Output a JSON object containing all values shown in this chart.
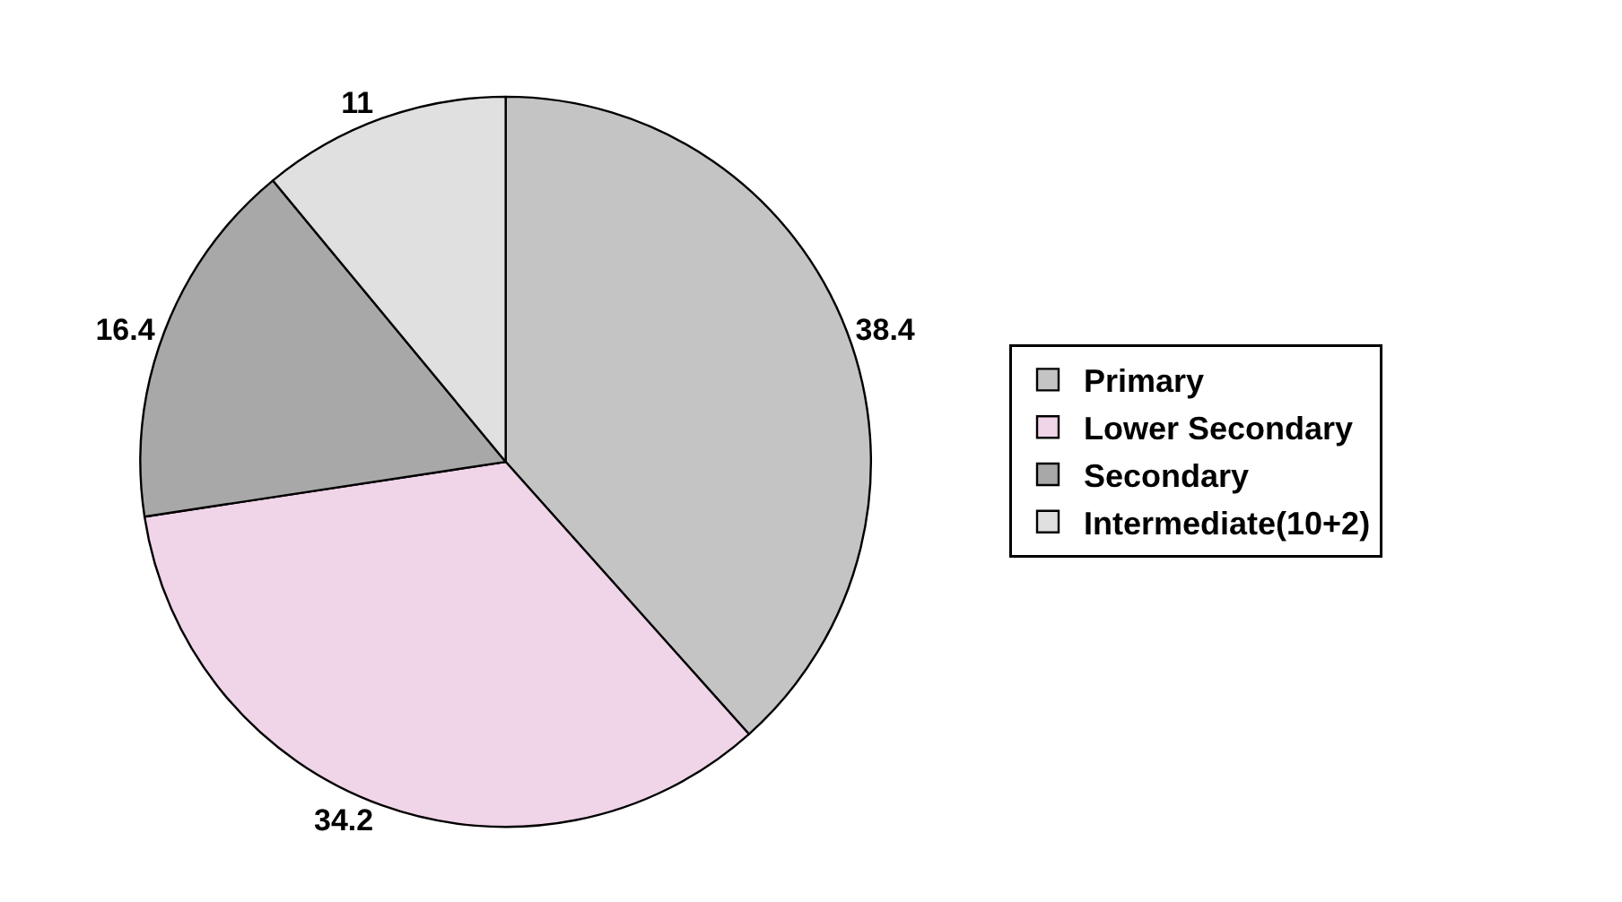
{
  "chart_data": {
    "type": "pie",
    "categories": [
      "Primary",
      "Lower Secondary",
      "Secondary",
      "Intermediate(10+2)"
    ],
    "values": [
      38.4,
      34.2,
      16.4,
      11
    ],
    "colors": [
      "#c4c4c4",
      "#f0d4e8",
      "#a8a8a8",
      "#e0e0e0"
    ],
    "data_labels": true,
    "legend": "right"
  }
}
